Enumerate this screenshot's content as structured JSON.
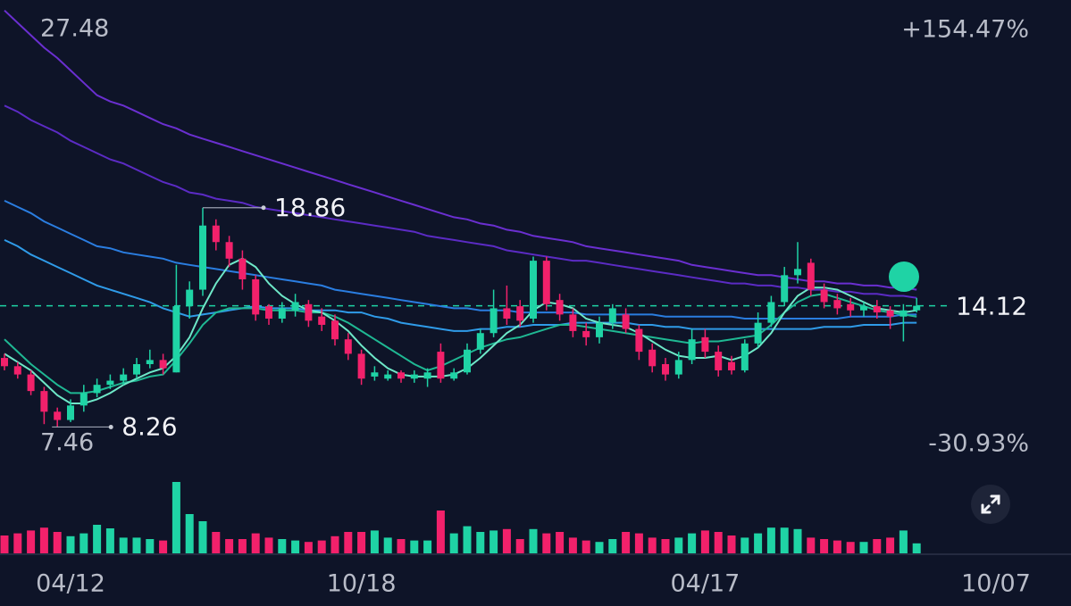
{
  "chart_data": {
    "type": "candlestick",
    "ylim": [
      7.46,
      27.48
    ],
    "yticks": [
      7.46,
      27.48
    ],
    "change_labels": {
      "top": "+154.47%",
      "bottom": "-30.93%"
    },
    "last_price": 14.12,
    "high_label": 18.86,
    "low_label": 8.26,
    "up_color": "#1fd3a5",
    "down_color": "#f2216b",
    "categories": [
      null,
      null,
      null,
      null,
      null,
      "04/12",
      null,
      null,
      null,
      null,
      null,
      null,
      null,
      null,
      null,
      null,
      null,
      null,
      null,
      null,
      null,
      null,
      null,
      null,
      null,
      null,
      null,
      "10/18",
      null,
      null,
      null,
      null,
      null,
      null,
      null,
      null,
      null,
      null,
      null,
      null,
      null,
      null,
      null,
      null,
      null,
      null,
      null,
      null,
      null,
      null,
      null,
      null,
      null,
      "04/17",
      null,
      null,
      null,
      null,
      null,
      null,
      null,
      null,
      null,
      null,
      null,
      null,
      null,
      null,
      null,
      null,
      null,
      null,
      null,
      null,
      null,
      "10/07"
    ],
    "open": [
      11.6,
      11.2,
      10.8,
      10.0,
      9.0,
      8.6,
      9.3,
      9.9,
      10.3,
      10.5,
      10.8,
      11.3,
      11.5,
      10.9,
      14.1,
      14.9,
      18.0,
      17.2,
      16.4,
      15.4,
      14.1,
      13.5,
      13.9,
      14.2,
      13.6,
      13.4,
      12.5,
      11.8,
      10.7,
      10.6,
      10.9,
      10.6,
      10.6,
      11.9,
      10.6,
      10.9,
      12.0,
      12.8,
      14.0,
      14.1,
      13.5,
      16.3,
      14.4,
      13.7,
      12.9,
      12.6,
      13.3,
      13.7,
      13.0,
      12.0,
      11.3,
      10.8,
      11.5,
      12.6,
      11.9,
      11.4,
      11.0,
      12.3,
      13.3,
      14.3,
      15.6,
      16.2,
      14.9,
      14.4,
      14.2,
      13.9,
      14.1,
      13.9,
      13.6,
      13.9,
      null,
      null,
      null,
      null,
      null,
      null
    ],
    "high": [
      11.8,
      11.4,
      11.0,
      10.2,
      9.2,
      9.6,
      10.3,
      10.6,
      10.8,
      11.1,
      11.6,
      12.0,
      11.8,
      16.1,
      15.3,
      18.86,
      18.3,
      17.5,
      16.8,
      15.6,
      14.2,
      14.3,
      14.7,
      14.4,
      14.0,
      13.7,
      12.8,
      12.0,
      11.2,
      11.0,
      11.0,
      11.0,
      11.1,
      12.3,
      11.1,
      12.3,
      13.0,
      14.9,
      15.1,
      14.4,
      16.5,
      16.5,
      14.7,
      14.0,
      13.3,
      13.6,
      14.2,
      14.0,
      13.2,
      12.3,
      11.6,
      11.9,
      13.0,
      13.0,
      12.2,
      11.7,
      12.5,
      13.8,
      14.6,
      16.0,
      17.2,
      16.4,
      15.2,
      14.7,
      14.5,
      14.3,
      14.4,
      14.1,
      14.2,
      14.5,
      null,
      null,
      null,
      null,
      null,
      null
    ],
    "low": [
      11.0,
      10.6,
      9.8,
      8.4,
      8.26,
      8.5,
      9.0,
      9.7,
      10.1,
      10.3,
      10.6,
      11.1,
      10.8,
      10.9,
      13.5,
      14.6,
      16.8,
      16.0,
      14.9,
      13.4,
      13.2,
      13.3,
      13.6,
      13.1,
      12.9,
      12.2,
      11.5,
      10.3,
      10.5,
      10.5,
      10.4,
      10.4,
      10.2,
      10.4,
      10.5,
      10.8,
      11.8,
      12.6,
      13.2,
      13.1,
      13.3,
      13.9,
      13.4,
      12.6,
      12.2,
      12.3,
      13.0,
      12.8,
      11.5,
      10.9,
      10.5,
      10.6,
      11.3,
      11.6,
      10.7,
      10.8,
      10.9,
      12.1,
      13.1,
      14.1,
      15.2,
      14.6,
      14.0,
      13.7,
      13.6,
      13.6,
      13.5,
      13.0,
      12.4,
      13.8,
      null,
      null,
      null,
      null,
      null,
      null
    ],
    "close": [
      11.2,
      10.8,
      10.0,
      9.0,
      8.6,
      9.3,
      9.9,
      10.3,
      10.5,
      10.8,
      11.3,
      11.5,
      11.1,
      14.1,
      14.9,
      18.0,
      17.2,
      16.4,
      15.4,
      13.7,
      13.5,
      14.0,
      14.3,
      13.4,
      13.2,
      12.5,
      11.8,
      10.6,
      10.9,
      10.8,
      10.6,
      10.8,
      10.9,
      10.6,
      10.9,
      12.0,
      12.8,
      14.0,
      13.5,
      13.4,
      16.3,
      14.2,
      13.7,
      12.9,
      12.6,
      13.3,
      14.0,
      13.0,
      11.9,
      11.2,
      10.8,
      11.5,
      12.5,
      11.9,
      11.0,
      11.0,
      12.3,
      13.3,
      14.3,
      15.6,
      15.9,
      14.9,
      14.3,
      14.0,
      13.9,
      14.1,
      13.8,
      13.6,
      13.9,
      14.12,
      null,
      null,
      null,
      null,
      null,
      null
    ],
    "volume": [
      25,
      28,
      32,
      36,
      30,
      24,
      28,
      40,
      35,
      22,
      22,
      20,
      18,
      100,
      55,
      45,
      30,
      20,
      20,
      28,
      22,
      20,
      18,
      16,
      18,
      24,
      30,
      30,
      32,
      22,
      20,
      18,
      18,
      60,
      28,
      38,
      30,
      32,
      34,
      20,
      34,
      28,
      30,
      22,
      18,
      16,
      20,
      30,
      28,
      22,
      20,
      22,
      28,
      32,
      30,
      25,
      22,
      28,
      36,
      36,
      34,
      22,
      20,
      18,
      16,
      16,
      20,
      22,
      32,
      14,
      null,
      null,
      null,
      null,
      null,
      null
    ],
    "series": [
      {
        "color": "#6a2fd0",
        "values": [
          28.4,
          27.8,
          27.2,
          26.6,
          26.1,
          25.5,
          24.9,
          24.3,
          24.0,
          23.8,
          23.5,
          23.2,
          22.9,
          22.7,
          22.4,
          22.2,
          22.0,
          21.8,
          21.6,
          21.4,
          21.2,
          21.0,
          20.8,
          20.6,
          20.4,
          20.2,
          20.0,
          19.8,
          19.6,
          19.4,
          19.2,
          19.0,
          18.8,
          18.6,
          18.4,
          18.3,
          18.1,
          18.0,
          17.8,
          17.7,
          17.5,
          17.4,
          17.3,
          17.2,
          17.0,
          16.9,
          16.8,
          16.7,
          16.6,
          16.5,
          16.4,
          16.3,
          16.1,
          16.0,
          15.9,
          15.8,
          15.7,
          15.6,
          15.6,
          15.5,
          15.4,
          15.3,
          15.3,
          15.2,
          15.2,
          15.1,
          15.1,
          15.0,
          15.0,
          14.9,
          null,
          null,
          null,
          null,
          null,
          null
        ]
      },
      {
        "color": "#5b2bc4",
        "values": [
          23.8,
          23.5,
          23.1,
          22.8,
          22.5,
          22.1,
          21.8,
          21.5,
          21.2,
          21.0,
          20.7,
          20.4,
          20.1,
          19.9,
          19.6,
          19.5,
          19.3,
          19.2,
          19.1,
          18.9,
          18.8,
          18.7,
          18.6,
          18.5,
          18.4,
          18.3,
          18.2,
          18.1,
          18.0,
          17.9,
          17.8,
          17.7,
          17.5,
          17.4,
          17.3,
          17.2,
          17.1,
          17.0,
          16.8,
          16.7,
          16.6,
          16.5,
          16.4,
          16.3,
          16.3,
          16.2,
          16.1,
          16.0,
          15.9,
          15.8,
          15.7,
          15.6,
          15.5,
          15.4,
          15.3,
          15.2,
          15.2,
          15.1,
          15.1,
          15.0,
          15.0,
          14.9,
          14.9,
          14.8,
          14.8,
          14.7,
          14.7,
          14.6,
          14.6,
          14.5,
          null,
          null,
          null,
          null,
          null,
          null
        ]
      },
      {
        "color": "#2a7de0",
        "values": [
          19.2,
          18.9,
          18.6,
          18.2,
          17.9,
          17.6,
          17.3,
          17.0,
          16.9,
          16.7,
          16.6,
          16.5,
          16.4,
          16.2,
          16.1,
          16.0,
          15.9,
          15.8,
          15.7,
          15.6,
          15.5,
          15.4,
          15.3,
          15.2,
          15.1,
          14.9,
          14.8,
          14.7,
          14.6,
          14.5,
          14.4,
          14.3,
          14.2,
          14.1,
          14.0,
          14.0,
          13.9,
          13.9,
          13.9,
          13.8,
          13.8,
          13.8,
          13.8,
          13.8,
          13.7,
          13.7,
          13.7,
          13.7,
          13.7,
          13.7,
          13.6,
          13.6,
          13.6,
          13.6,
          13.6,
          13.6,
          13.5,
          13.5,
          13.5,
          13.5,
          13.5,
          13.5,
          13.5,
          13.5,
          13.6,
          13.6,
          13.6,
          13.6,
          13.7,
          13.7,
          null,
          null,
          null,
          null,
          null,
          null
        ]
      },
      {
        "color": "#2f9be8",
        "values": [
          17.3,
          17.0,
          16.6,
          16.3,
          16.0,
          15.7,
          15.4,
          15.1,
          14.9,
          14.7,
          14.5,
          14.3,
          14.0,
          13.8,
          13.6,
          13.7,
          13.8,
          13.9,
          14.0,
          14.1,
          14.0,
          14.0,
          14.0,
          13.9,
          13.9,
          13.9,
          13.8,
          13.8,
          13.6,
          13.5,
          13.3,
          13.2,
          13.1,
          13.0,
          12.9,
          12.9,
          13.0,
          13.0,
          13.1,
          13.1,
          13.2,
          13.2,
          13.2,
          13.3,
          13.3,
          13.3,
          13.3,
          13.3,
          13.2,
          13.2,
          13.1,
          13.1,
          13.0,
          13.0,
          13.0,
          13.0,
          13.0,
          13.0,
          13.0,
          13.0,
          13.0,
          13.0,
          13.1,
          13.1,
          13.1,
          13.2,
          13.2,
          13.2,
          13.3,
          13.3,
          null,
          null,
          null,
          null,
          null,
          null
        ]
      },
      {
        "color": "#1fb893",
        "values": [
          12.5,
          11.9,
          11.3,
          10.8,
          10.3,
          9.9,
          9.9,
          10.0,
          10.2,
          10.4,
          10.5,
          10.7,
          10.8,
          11.5,
          12.3,
          13.2,
          13.8,
          14.0,
          14.0,
          14.0,
          13.9,
          13.9,
          13.9,
          13.8,
          13.8,
          13.6,
          13.3,
          12.9,
          12.5,
          12.1,
          11.7,
          11.3,
          11.0,
          11.2,
          11.5,
          11.8,
          12.1,
          12.3,
          12.5,
          12.6,
          12.8,
          13.0,
          13.2,
          13.2,
          13.1,
          13.0,
          12.9,
          12.8,
          12.7,
          12.6,
          12.5,
          12.4,
          12.3,
          12.4,
          12.4,
          12.5,
          12.6,
          12.7,
          13.2,
          13.8,
          14.3,
          14.6,
          14.7,
          14.5,
          14.3,
          14.1,
          13.9,
          13.8,
          13.7,
          13.6,
          null,
          null,
          null,
          null,
          null,
          null
        ]
      },
      {
        "color": "#6ee8c8",
        "values": [
          11.8,
          11.4,
          11.0,
          10.4,
          9.8,
          9.4,
          9.4,
          9.6,
          9.9,
          10.3,
          10.6,
          10.9,
          11.1,
          11.7,
          12.6,
          14.0,
          15.2,
          16.1,
          16.4,
          16.0,
          15.2,
          14.6,
          14.2,
          13.9,
          13.8,
          13.4,
          12.9,
          12.2,
          11.6,
          11.1,
          10.8,
          10.7,
          10.7,
          10.7,
          10.8,
          11.1,
          11.6,
          12.2,
          12.8,
          13.2,
          13.9,
          14.3,
          14.2,
          14.0,
          13.5,
          13.3,
          13.2,
          13.1,
          12.8,
          12.4,
          12.0,
          11.7,
          11.6,
          11.6,
          11.7,
          11.5,
          11.7,
          12.1,
          12.8,
          13.8,
          14.6,
          15.0,
          15.0,
          14.9,
          14.6,
          14.3,
          14.0,
          13.9,
          13.8,
          13.9,
          null,
          null,
          null,
          null,
          null,
          null
        ]
      }
    ]
  }
}
